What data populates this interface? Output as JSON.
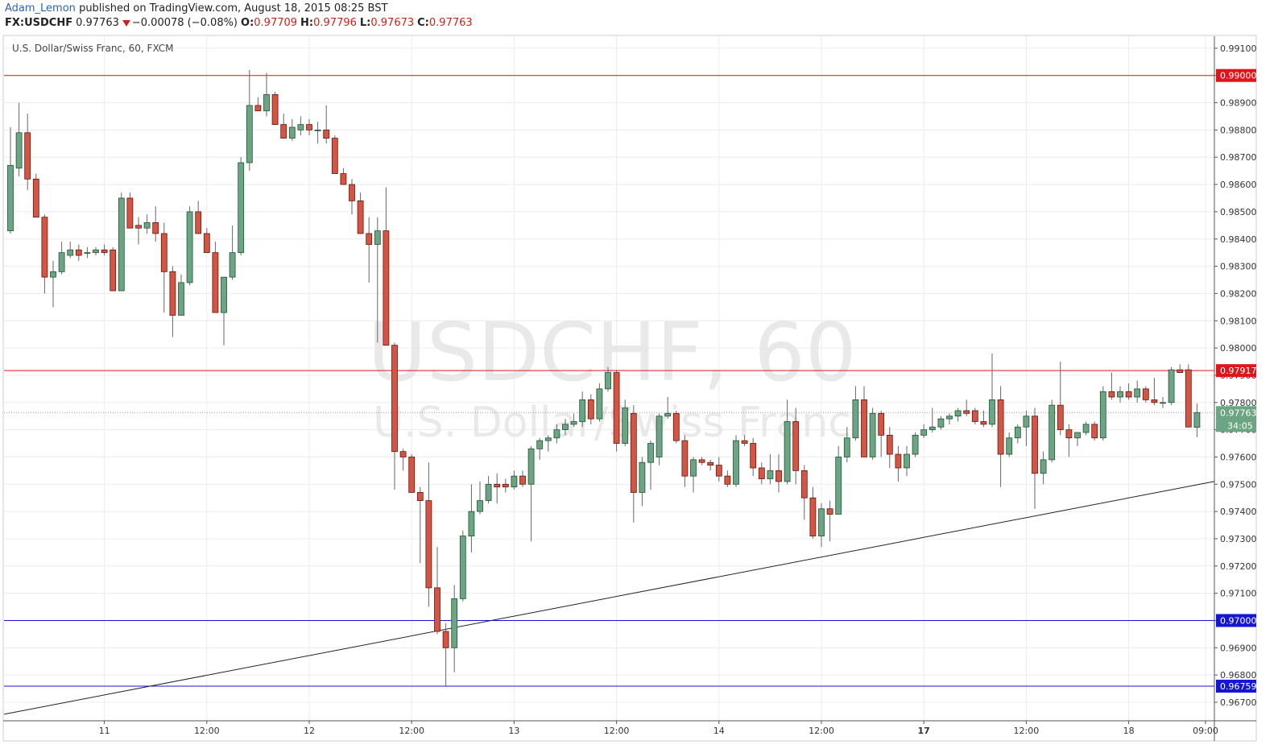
{
  "header": {
    "user": "Adam_Lemon",
    "published": "published on TradingView.com, August 18, 2015 08:25 BST",
    "symbol": "FX:USDCHF",
    "price": "0.97763",
    "change": "−0.00078 (−0.08%)",
    "ohlc": [
      {
        "label": "O:",
        "value": "0.97709"
      },
      {
        "label": "H:",
        "value": "0.97796"
      },
      {
        "label": "L:",
        "value": "0.97673"
      },
      {
        "label": "C:",
        "value": "0.97763"
      }
    ]
  },
  "chart_data": {
    "type": "candlestick",
    "title": "U.S. Dollar/Swiss Franc, 60, FXCM",
    "watermark": "USDCHF, 60",
    "watermark_subtitle": "U.S. Dollar/Swiss Franc",
    "up_color": "#6ba583",
    "down_color": "#d75442",
    "grid": true,
    "ylim": [
      0.96632,
      0.99144
    ],
    "yticks": [
      {
        "value": 0.967,
        "label": "0.96700"
      },
      {
        "value": 0.968,
        "label": "0.96800"
      },
      {
        "value": 0.969,
        "label": "0.96900"
      },
      {
        "value": 0.97,
        "label": "0.97000"
      },
      {
        "value": 0.971,
        "label": "0.97100"
      },
      {
        "value": 0.972,
        "label": "0.97200"
      },
      {
        "value": 0.973,
        "label": "0.97300"
      },
      {
        "value": 0.974,
        "label": "0.97400"
      },
      {
        "value": 0.975,
        "label": "0.97500"
      },
      {
        "value": 0.976,
        "label": "0.97600"
      },
      {
        "value": 0.977,
        "label": "0.97700"
      },
      {
        "value": 0.978,
        "label": "0.97800"
      },
      {
        "value": 0.979,
        "label": "0.97900"
      },
      {
        "value": 0.98,
        "label": "0.98000"
      },
      {
        "value": 0.981,
        "label": "0.98100"
      },
      {
        "value": 0.982,
        "label": "0.98200"
      },
      {
        "value": 0.983,
        "label": "0.98300"
      },
      {
        "value": 0.984,
        "label": "0.98400"
      },
      {
        "value": 0.985,
        "label": "0.98500"
      },
      {
        "value": 0.986,
        "label": "0.98600"
      },
      {
        "value": 0.987,
        "label": "0.98700"
      },
      {
        "value": 0.988,
        "label": "0.98800"
      },
      {
        "value": 0.989,
        "label": "0.98900"
      },
      {
        "value": 0.99,
        "label": "0.99000"
      },
      {
        "value": 0.991,
        "label": "0.99100"
      }
    ],
    "xticks": [
      {
        "value": 11,
        "label": "11"
      },
      {
        "value": 23,
        "label": "12:00"
      },
      {
        "value": 35,
        "label": "12"
      },
      {
        "value": 47,
        "label": "12:00"
      },
      {
        "value": 59,
        "label": "13"
      },
      {
        "value": 71,
        "label": "12:00"
      },
      {
        "value": 83,
        "label": "14"
      },
      {
        "value": 95,
        "label": "12:00"
      },
      {
        "value": 107,
        "label": "17"
      },
      {
        "value": 119,
        "label": "12:00"
      },
      {
        "value": 131,
        "label": "18"
      },
      {
        "value": 140,
        "label": "09:00"
      }
    ],
    "bold_xtick": 8,
    "open": [
      0.9843,
      0.9866,
      0.9879,
      0.9862,
      0.9848,
      0.9826,
      0.9828,
      0.9834,
      0.9836,
      0.9835,
      0.9835,
      0.9836,
      0.9836,
      0.9821,
      0.9855,
      0.9845,
      0.9844,
      0.9846,
      0.9842,
      0.9828,
      0.9812,
      0.9824,
      0.985,
      0.9842,
      0.9835,
      0.9813,
      0.9826,
      0.9835,
      0.9868,
      0.9889,
      0.9887,
      0.9893,
      0.9882,
      0.9877,
      0.988,
      0.9882,
      0.988,
      0.988,
      0.9877,
      0.9864,
      0.986,
      0.9854,
      0.9842,
      0.9838,
      0.9843,
      0.9801,
      0.9762,
      0.976,
      0.9747,
      0.9744,
      0.9712,
      0.9696,
      0.969,
      0.9708,
      0.9731,
      0.974,
      0.9744,
      0.975,
      0.975,
      0.9749,
      0.9753,
      0.975,
      0.9763,
      0.9766,
      0.9767,
      0.977,
      0.9772,
      0.9773,
      0.9781,
      0.9774,
      0.9785,
      0.9791,
      0.9765,
      0.9776,
      0.9747,
      0.9758,
      0.976,
      0.9775,
      0.9776,
      0.9766,
      0.9753,
      0.9759,
      0.9758,
      0.9757,
      0.9753,
      0.975,
      0.9766,
      0.9765,
      0.9756,
      0.9752,
      0.9755,
      0.9751,
      0.9773,
      0.9755,
      0.9745,
      0.9731,
      0.9741,
      0.9739,
      0.976,
      0.9767,
      0.9781,
      0.976,
      0.9776,
      0.9768,
      0.9761,
      0.9756,
      0.9761,
      0.9768,
      0.977,
      0.9771,
      0.9774,
      0.9775,
      0.9777,
      0.9777,
      0.9773,
      0.9772,
      0.9781,
      0.9761,
      0.9767,
      0.9771,
      0.9775,
      0.9754,
      0.9759,
      0.9779,
      0.977,
      0.9767,
      0.9769,
      0.9772,
      0.9767,
      0.9784,
      0.9782,
      0.9784,
      0.9782,
      0.9785,
      0.9781,
      0.978,
      0.978,
      0.9792,
      0.9792,
      0.97709
    ],
    "high": [
      0.9881,
      0.989,
      0.9886,
      0.9864,
      0.9849,
      0.9832,
      0.9839,
      0.9839,
      0.9838,
      0.9837,
      0.9837,
      0.9838,
      0.9837,
      0.9857,
      0.9857,
      0.9848,
      0.9849,
      0.9852,
      0.9846,
      0.983,
      0.9827,
      0.9852,
      0.9854,
      0.9844,
      0.9839,
      0.9826,
      0.9845,
      0.987,
      0.9902,
      0.9892,
      0.9901,
      0.9894,
      0.9886,
      0.9884,
      0.9885,
      0.9884,
      0.9883,
      0.9889,
      0.9878,
      0.9866,
      0.9862,
      0.9857,
      0.9848,
      0.9848,
      0.9859,
      0.9802,
      0.9763,
      0.9761,
      0.9749,
      0.9758,
      0.9727,
      0.9699,
      0.9713,
      0.9733,
      0.975,
      0.9751,
      0.9753,
      0.9754,
      0.9752,
      0.9755,
      0.9755,
      0.9764,
      0.9767,
      0.9768,
      0.9772,
      0.9774,
      0.9776,
      0.9784,
      0.9783,
      0.9787,
      0.9793,
      0.9792,
      0.9781,
      0.9779,
      0.976,
      0.9766,
      0.9776,
      0.9782,
      0.9777,
      0.9768,
      0.976,
      0.976,
      0.9759,
      0.976,
      0.9755,
      0.9768,
      0.9768,
      0.9767,
      0.9758,
      0.9761,
      0.9761,
      0.9781,
      0.9778,
      0.9757,
      0.9749,
      0.9743,
      0.9744,
      0.9764,
      0.9771,
      0.9786,
      0.9786,
      0.9778,
      0.9777,
      0.9771,
      0.9764,
      0.9764,
      0.9769,
      0.9772,
      0.9778,
      0.9775,
      0.9776,
      0.9778,
      0.9781,
      0.9778,
      0.9777,
      0.9798,
      0.9786,
      0.9769,
      0.9772,
      0.9777,
      0.9778,
      0.9762,
      0.9781,
      0.9795,
      0.9772,
      0.9769,
      0.9773,
      0.9773,
      0.9786,
      0.9791,
      0.9786,
      0.9787,
      0.9788,
      0.9786,
      0.9789,
      0.9782,
      0.9793,
      0.9794,
      0.9794,
      0.97796
    ],
    "low": [
      0.9842,
      0.9863,
      0.9858,
      0.9848,
      0.982,
      0.9815,
      0.9827,
      0.9833,
      0.9832,
      0.9833,
      0.9834,
      0.9834,
      0.9821,
      0.9821,
      0.9844,
      0.9838,
      0.9842,
      0.9839,
      0.9813,
      0.9804,
      0.9812,
      0.9823,
      0.9842,
      0.9835,
      0.9813,
      0.9801,
      0.9825,
      0.9834,
      0.9865,
      0.9887,
      0.9885,
      0.9882,
      0.9877,
      0.9876,
      0.9878,
      0.9878,
      0.9875,
      0.9875,
      0.9864,
      0.986,
      0.9849,
      0.9842,
      0.9824,
      0.9802,
      0.9801,
      0.9748,
      0.9755,
      0.9747,
      0.9721,
      0.9705,
      0.9695,
      0.9676,
      0.9681,
      0.9707,
      0.9725,
      0.9739,
      0.9743,
      0.9743,
      0.9747,
      0.9748,
      0.9749,
      0.9729,
      0.9759,
      0.9762,
      0.9765,
      0.9768,
      0.9771,
      0.9771,
      0.9772,
      0.9773,
      0.9784,
      0.9762,
      0.9764,
      0.9736,
      0.9742,
      0.9748,
      0.9757,
      0.9774,
      0.9765,
      0.9749,
      0.9747,
      0.9757,
      0.9755,
      0.9751,
      0.9749,
      0.9749,
      0.9764,
      0.9753,
      0.975,
      0.975,
      0.9747,
      0.975,
      0.975,
      0.9737,
      0.973,
      0.9727,
      0.9729,
      0.9739,
      0.9758,
      0.9766,
      0.976,
      0.9759,
      0.976,
      0.9756,
      0.9751,
      0.9753,
      0.976,
      0.9767,
      0.9769,
      0.977,
      0.9772,
      0.9773,
      0.9775,
      0.9772,
      0.9771,
      0.9771,
      0.9749,
      0.976,
      0.9765,
      0.9764,
      0.9741,
      0.975,
      0.9758,
      0.9768,
      0.976,
      0.9764,
      0.9768,
      0.9766,
      0.9766,
      0.9781,
      0.978,
      0.9781,
      0.978,
      0.978,
      0.9779,
      0.9778,
      0.9779,
      0.9791,
      0.9771,
      0.97673
    ],
    "close": [
      0.9867,
      0.9879,
      0.9862,
      0.9848,
      0.9826,
      0.9828,
      0.9835,
      0.9836,
      0.9834,
      0.9835,
      0.9836,
      0.9835,
      0.9821,
      0.9855,
      0.9844,
      0.9844,
      0.9846,
      0.9842,
      0.9828,
      0.9812,
      0.9824,
      0.985,
      0.9842,
      0.9835,
      0.9813,
      0.9826,
      0.9835,
      0.9868,
      0.9889,
      0.9887,
      0.9893,
      0.9882,
      0.9877,
      0.9881,
      0.9882,
      0.988,
      0.988,
      0.9877,
      0.9864,
      0.986,
      0.9854,
      0.9842,
      0.9838,
      0.9843,
      0.9801,
      0.9762,
      0.976,
      0.9747,
      0.9744,
      0.9712,
      0.9696,
      0.969,
      0.9708,
      0.9731,
      0.974,
      0.9744,
      0.975,
      0.9749,
      0.9749,
      0.9753,
      0.975,
      0.9763,
      0.9766,
      0.9767,
      0.977,
      0.9772,
      0.9773,
      0.9781,
      0.9774,
      0.9785,
      0.9791,
      0.9765,
      0.9778,
      0.9747,
      0.9758,
      0.9765,
      0.9775,
      0.9776,
      0.9766,
      0.9753,
      0.9759,
      0.9758,
      0.9757,
      0.9753,
      0.975,
      0.9766,
      0.9765,
      0.9756,
      0.9752,
      0.9755,
      0.9751,
      0.9773,
      0.9755,
      0.9745,
      0.9731,
      0.9741,
      0.9739,
      0.976,
      0.9767,
      0.9781,
      0.976,
      0.9776,
      0.9768,
      0.9761,
      0.9756,
      0.9761,
      0.9768,
      0.977,
      0.9771,
      0.9774,
      0.9775,
      0.9777,
      0.9776,
      0.9773,
      0.9772,
      0.9781,
      0.9761,
      0.9767,
      0.9771,
      0.9775,
      0.9754,
      0.9759,
      0.9779,
      0.977,
      0.9767,
      0.9769,
      0.9772,
      0.9767,
      0.9784,
      0.9782,
      0.9784,
      0.9782,
      0.9785,
      0.9781,
      0.978,
      0.978,
      0.9792,
      0.9791,
      0.9771,
      0.97763
    ],
    "levels": [
      {
        "value": 0.99,
        "label": "0.99000",
        "color": "#e0151b"
      },
      {
        "value": 0.97917,
        "label": "0.97917",
        "color": "#e0151b"
      },
      {
        "value": 0.97,
        "label": "0.97000",
        "color": "#1515d6"
      },
      {
        "value": 0.96759,
        "label": "0.96759",
        "color": "#1515d6"
      }
    ],
    "last_price": {
      "value": 0.97763,
      "label": "0.97763",
      "countdown": "34:05"
    },
    "trendline": {
      "start": [
        -0.75,
        0.96656
      ],
      "end": [
        141,
        0.9751
      ],
      "color": "#222222"
    }
  }
}
